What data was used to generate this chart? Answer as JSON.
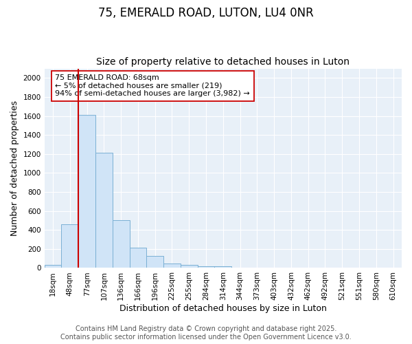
{
  "title": "75, EMERALD ROAD, LUTON, LU4 0NR",
  "subtitle": "Size of property relative to detached houses in Luton",
  "xlabel": "Distribution of detached houses by size in Luton",
  "ylabel": "Number of detached properties",
  "categories": [
    "18sqm",
    "48sqm",
    "77sqm",
    "107sqm",
    "136sqm",
    "166sqm",
    "196sqm",
    "225sqm",
    "255sqm",
    "284sqm",
    "314sqm",
    "344sqm",
    "373sqm",
    "403sqm",
    "432sqm",
    "462sqm",
    "492sqm",
    "521sqm",
    "551sqm",
    "580sqm",
    "610sqm"
  ],
  "values": [
    30,
    460,
    1610,
    1210,
    500,
    210,
    130,
    50,
    30,
    20,
    15,
    0,
    0,
    0,
    0,
    0,
    0,
    0,
    0,
    0,
    0
  ],
  "bar_fill_color": "#d0e4f7",
  "bar_edge_color": "#7ab0d4",
  "red_line_bar_index": 2,
  "ylim": [
    0,
    2100
  ],
  "yticks": [
    0,
    200,
    400,
    600,
    800,
    1000,
    1200,
    1400,
    1600,
    1800,
    2000
  ],
  "annotation_title": "75 EMERALD ROAD: 68sqm",
  "annotation_line1": "← 5% of detached houses are smaller (219)",
  "annotation_line2": "94% of semi-detached houses are larger (3,982) →",
  "footer_line1": "Contains HM Land Registry data © Crown copyright and database right 2025.",
  "footer_line2": "Contains public sector information licensed under the Open Government Licence v3.0.",
  "fig_background_color": "#ffffff",
  "plot_background_color": "#e8f0f8",
  "grid_color": "#ffffff",
  "red_color": "#cc0000",
  "title_fontsize": 12,
  "subtitle_fontsize": 10,
  "axis_label_fontsize": 9,
  "tick_fontsize": 7.5,
  "annotation_fontsize": 8,
  "footer_fontsize": 7
}
